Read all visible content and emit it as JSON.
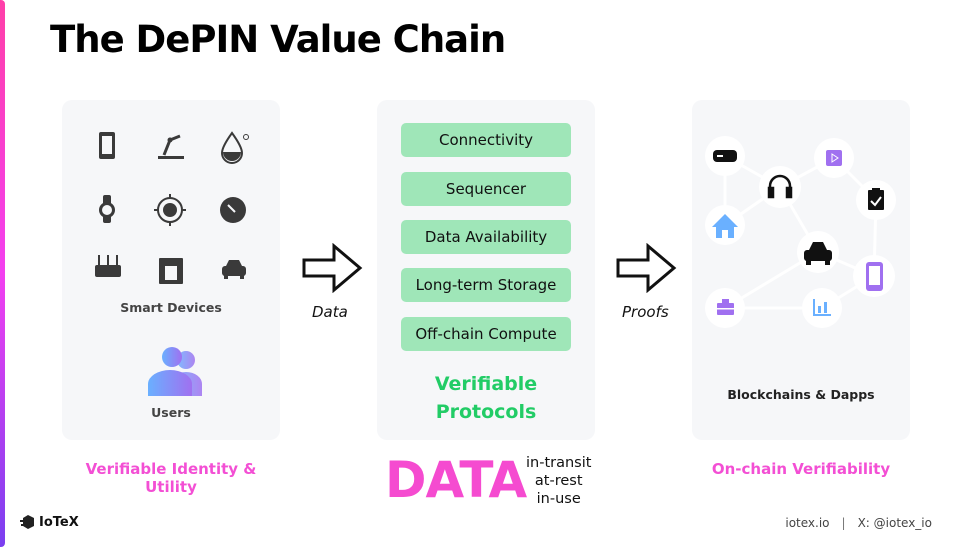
{
  "title": "The DePIN Value Chain",
  "left_panel": {
    "devices_label": "Smart Devices",
    "device_icons": [
      "smartphone-icon",
      "robot-arm-icon",
      "water-drop-icon",
      "smartwatch-icon",
      "target-icon",
      "gauge-icon",
      "router-icon",
      "coffee-machine-icon",
      "car-icon"
    ],
    "users_label": "Users",
    "caption": "Verifiable Identity & Utility"
  },
  "arrow_left_label": "Data",
  "middle_panel": {
    "protocols": [
      "Connectivity",
      "Sequencer",
      "Data Availability",
      "Long-term Storage",
      "Off-chain Compute"
    ],
    "heading_line1": "Verifiable",
    "heading_line2": "Protocols"
  },
  "arrow_right_label": "Proofs",
  "data_word": "DATA",
  "data_states": [
    "in-transit",
    "at-rest",
    "in-use"
  ],
  "right_panel": {
    "label": "Blockchains & Dapps",
    "caption": "On-chain Verifiability",
    "node_icons": [
      "gamepad-icon",
      "play-icon",
      "headphones-icon",
      "clipboard-check-icon",
      "house-icon",
      "car-icon",
      "smartphone-icon",
      "briefcase-icon",
      "bar-chart-icon"
    ]
  },
  "footer": {
    "logo": "IoTeX",
    "website": "iotex.io",
    "separator": "|",
    "social": "X: @iotex_io"
  },
  "colors": {
    "pink": "#f54bd0",
    "green": "#22cc66",
    "protocol_box": "#9fe6b8",
    "panel": "#f6f7f9",
    "purple": "#a070f0",
    "blue": "#6ab0ff"
  }
}
